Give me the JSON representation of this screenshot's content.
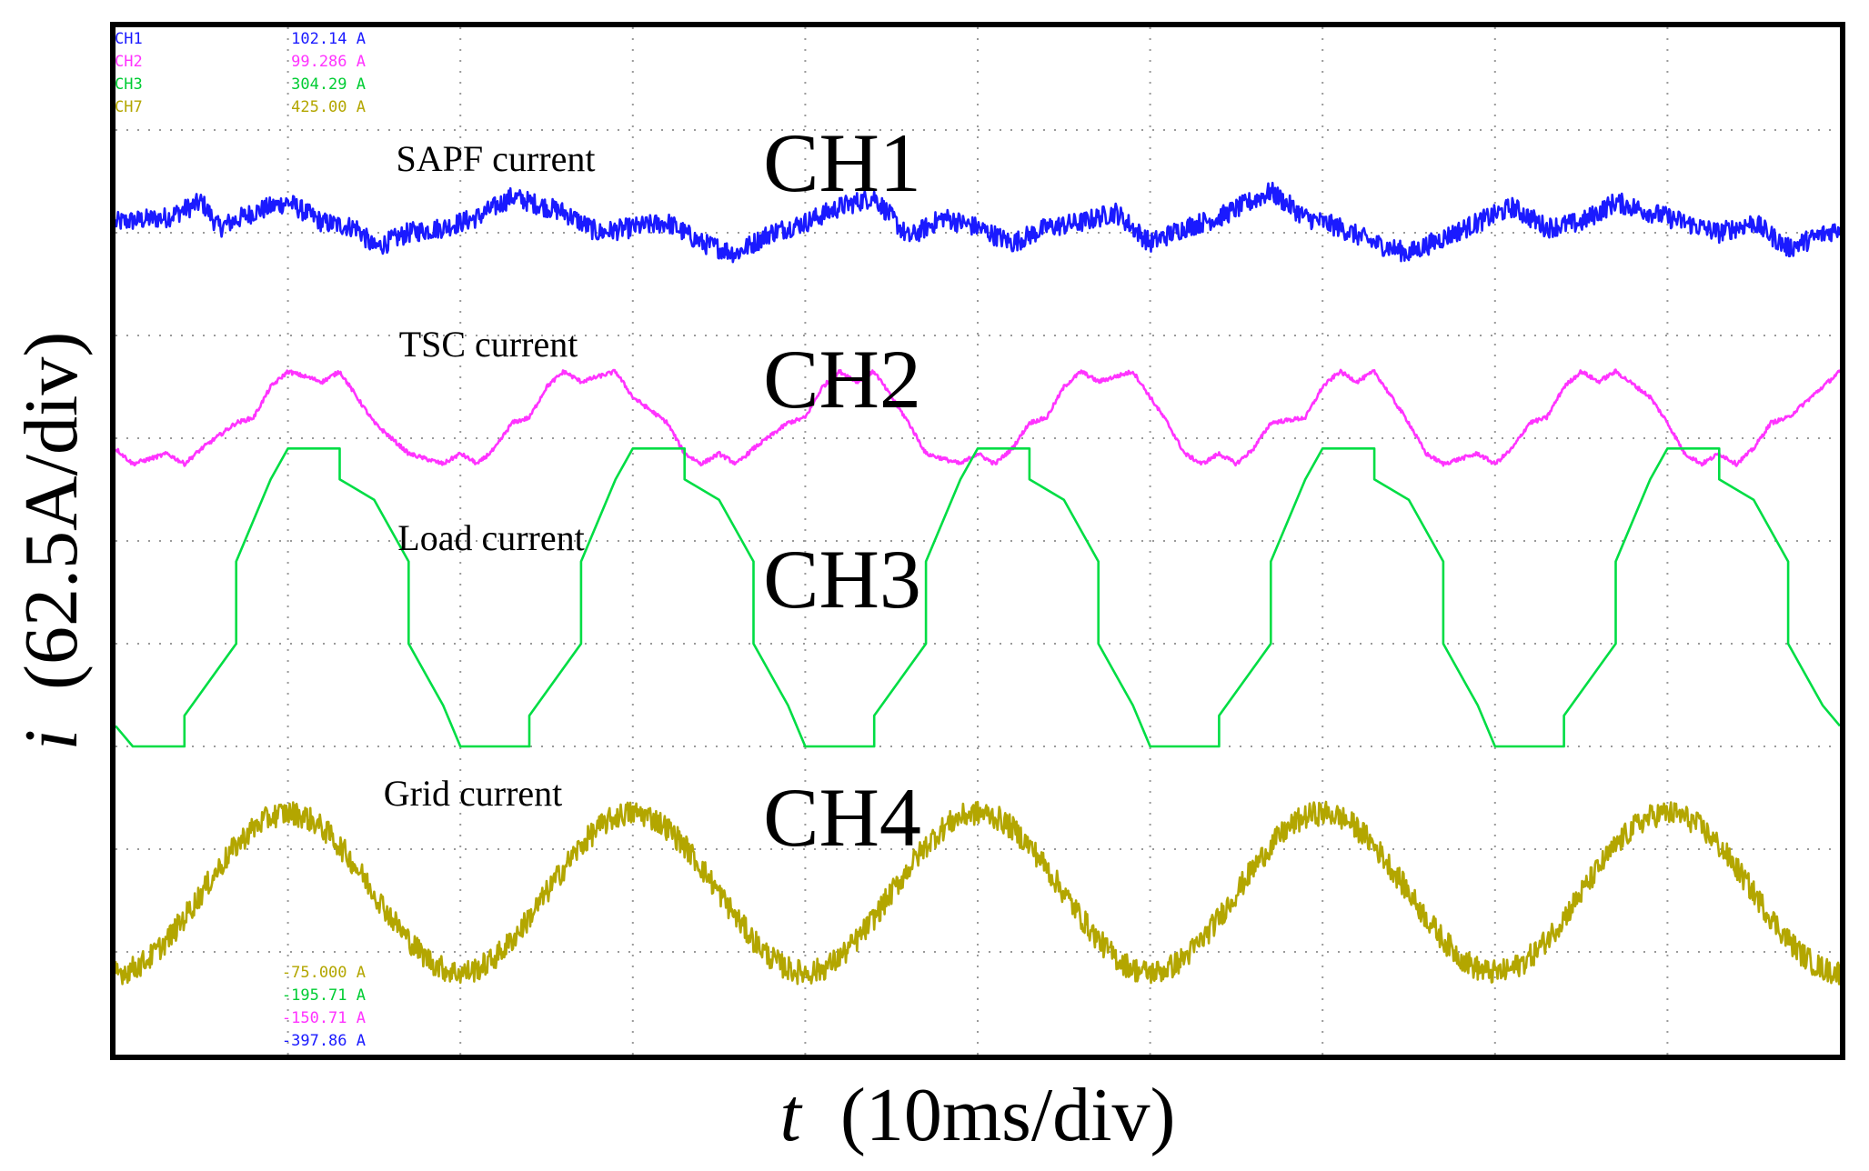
{
  "chart_data": {
    "type": "line",
    "title": "",
    "xlabel": {
      "symbol": "t",
      "unit": "(10ms/div)"
    },
    "ylabel": {
      "symbol": "i",
      "unit": "(62.5A/div)"
    },
    "grid": true,
    "x_divisions": 10,
    "y_divisions": 10,
    "x_unit": "ms",
    "x_range_ms": [
      0,
      100
    ],
    "y_range_div": [
      0,
      10
    ],
    "readouts_top": [
      {
        "channel": "CH1",
        "value": "102.14 A",
        "color": "#1a1aff"
      },
      {
        "channel": "CH2",
        "value": "99.286 A",
        "color": "#ff33ff"
      },
      {
        "channel": "CH3",
        "value": "304.29 A",
        "color": "#00cc33"
      },
      {
        "channel": "CH7",
        "value": "425.00 A",
        "color": "#b3a600"
      }
    ],
    "readouts_bottom": [
      {
        "value": "-75.000 A",
        "color": "#b3a600"
      },
      {
        "value": "-195.71 A",
        "color": "#00cc33"
      },
      {
        "value": "-150.71 A",
        "color": "#ff33ff"
      },
      {
        "value": "-397.86 A",
        "color": "#1a1aff"
      }
    ],
    "series": [
      {
        "name": "CH1",
        "description": "SAPF current",
        "color": "#1a1aff",
        "noise_div": 0.1,
        "x_ms": [
          0,
          3,
          5,
          6,
          8,
          10,
          12,
          14,
          15,
          17,
          19,
          21,
          23,
          26,
          28,
          30,
          32,
          34,
          36,
          38,
          40,
          42,
          44,
          46,
          48,
          50,
          52,
          54,
          56,
          58,
          60,
          62,
          64,
          67,
          69,
          71,
          73,
          75,
          77,
          79,
          81,
          83,
          85,
          87,
          89,
          91,
          93,
          95,
          97,
          100
        ],
        "y_div": [
          8.1,
          8.15,
          8.3,
          8.05,
          8.2,
          8.3,
          8.1,
          8.05,
          7.85,
          8.0,
          8.05,
          8.15,
          8.35,
          8.2,
          8.0,
          8.05,
          8.1,
          7.9,
          7.8,
          8.0,
          8.1,
          8.25,
          8.35,
          7.95,
          8.15,
          8.05,
          7.9,
          8.05,
          8.1,
          8.2,
          7.9,
          8.05,
          8.15,
          8.4,
          8.15,
          8.05,
          7.9,
          7.8,
          7.95,
          8.1,
          8.25,
          8.05,
          8.1,
          8.3,
          8.2,
          8.1,
          8.0,
          8.1,
          7.85,
          8.05
        ]
      },
      {
        "name": "CH2",
        "description": "TSC current",
        "color": "#ff33ff",
        "noise_div": 0.02,
        "x_ms": [
          0,
          1,
          3,
          4,
          5,
          7,
          8,
          9,
          10,
          12,
          13,
          14,
          15,
          17,
          19,
          20,
          21,
          22,
          23,
          24,
          25,
          26,
          27,
          29,
          30,
          32,
          33,
          34,
          35,
          36,
          37,
          39,
          40,
          41,
          42,
          43,
          44,
          45,
          46,
          47,
          49,
          50,
          51,
          52,
          53,
          54,
          55,
          56,
          57,
          59,
          60,
          61,
          62,
          63,
          64,
          65,
          66,
          67,
          69,
          70,
          71,
          72,
          73,
          74,
          75,
          76,
          77,
          79,
          80,
          81,
          82,
          83,
          84,
          85,
          86,
          87,
          89,
          90,
          91,
          92,
          93,
          94,
          95,
          96,
          97,
          99,
          100
        ],
        "y_div": [
          5.9,
          5.75,
          5.85,
          5.75,
          5.9,
          6.15,
          6.2,
          6.5,
          6.65,
          6.55,
          6.65,
          6.4,
          6.15,
          5.85,
          5.75,
          5.85,
          5.75,
          5.9,
          6.15,
          6.2,
          6.5,
          6.65,
          6.55,
          6.65,
          6.4,
          6.15,
          5.85,
          5.75,
          5.85,
          5.75,
          5.9,
          6.15,
          6.2,
          6.5,
          6.65,
          6.55,
          6.65,
          6.4,
          6.15,
          5.85,
          5.75,
          5.85,
          5.75,
          5.9,
          6.15,
          6.2,
          6.5,
          6.65,
          6.55,
          6.65,
          6.4,
          6.15,
          5.85,
          5.75,
          5.85,
          5.75,
          5.9,
          6.15,
          6.2,
          6.5,
          6.65,
          6.55,
          6.65,
          6.4,
          6.15,
          5.85,
          5.75,
          5.85,
          5.75,
          5.9,
          6.15,
          6.2,
          6.5,
          6.65,
          6.55,
          6.65,
          6.4,
          6.15,
          5.85,
          5.75,
          5.85,
          5.75,
          5.9,
          6.15,
          6.2,
          6.5,
          6.65
        ]
      },
      {
        "name": "CH3",
        "description": "Load current",
        "color": "#00dd44",
        "noise_div": 0.0,
        "x_ms": [
          0,
          1,
          3,
          4,
          4,
          7,
          7,
          9,
          10,
          12,
          13,
          13,
          15,
          17,
          17,
          19,
          20,
          22,
          23,
          24,
          24,
          27,
          27,
          29,
          30,
          32,
          33,
          33,
          35,
          37,
          37,
          39,
          40,
          42,
          43,
          44,
          44,
          47,
          47,
          49,
          50,
          52,
          53,
          53,
          55,
          57,
          57,
          59,
          60,
          62,
          63,
          64,
          64,
          67,
          67,
          69,
          70,
          72,
          73,
          73,
          75,
          77,
          77,
          79,
          80,
          82,
          83,
          84,
          84,
          87,
          87,
          89,
          90,
          92,
          93,
          93,
          95,
          97,
          97,
          99,
          100
        ],
        "y_div": [
          3.2,
          3.0,
          3.0,
          3.0,
          3.3,
          4.0,
          4.8,
          5.6,
          5.9,
          5.9,
          5.9,
          5.6,
          5.4,
          4.8,
          4.0,
          3.4,
          3.0,
          3.0,
          3.0,
          3.0,
          3.3,
          4.0,
          4.8,
          5.6,
          5.9,
          5.9,
          5.9,
          5.6,
          5.4,
          4.8,
          4.0,
          3.4,
          3.0,
          3.0,
          3.0,
          3.0,
          3.3,
          4.0,
          4.8,
          5.6,
          5.9,
          5.9,
          5.9,
          5.6,
          5.4,
          4.8,
          4.0,
          3.4,
          3.0,
          3.0,
          3.0,
          3.0,
          3.3,
          4.0,
          4.8,
          5.6,
          5.9,
          5.9,
          5.9,
          5.6,
          5.4,
          4.8,
          4.0,
          3.4,
          3.0,
          3.0,
          3.0,
          3.0,
          3.3,
          4.0,
          4.8,
          5.6,
          5.9,
          5.9,
          5.9,
          5.6,
          5.4,
          4.8,
          4.0,
          3.4,
          3.2
        ]
      },
      {
        "name": "CH4",
        "description": "Grid current",
        "color": "#b3a600",
        "noise_div": 0.12,
        "x_ms": [
          0,
          10,
          20,
          30,
          40,
          50,
          60,
          70,
          80,
          90,
          100
        ],
        "y_div": [
          0.8,
          2.35,
          0.8,
          2.35,
          0.8,
          2.35,
          0.8,
          2.35,
          0.8,
          2.35,
          0.8
        ],
        "shape": "sinusoid",
        "period_ms": 20,
        "peak_ms": [
          10,
          30,
          50,
          70,
          90
        ],
        "peak_div": 2.35,
        "trough_div": 0.8
      }
    ],
    "annotations": [
      {
        "text": "SAPF current",
        "channel_label": "CH1"
      },
      {
        "text": "TSC current",
        "channel_label": "CH2"
      },
      {
        "text": "Load current",
        "channel_label": "CH3"
      },
      {
        "text": "Grid current",
        "channel_label": "CH4"
      }
    ]
  }
}
